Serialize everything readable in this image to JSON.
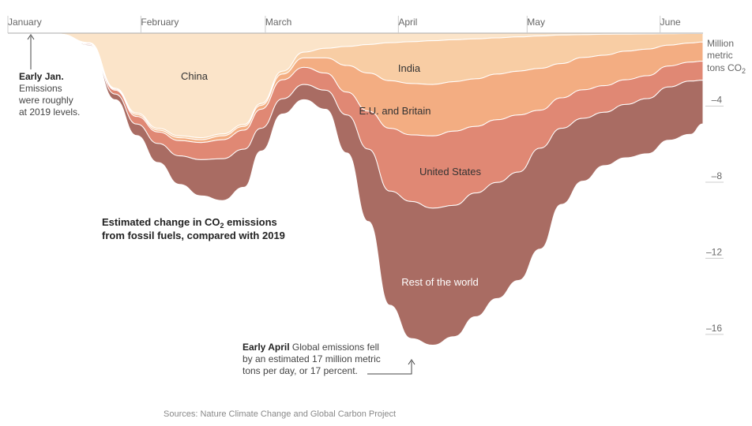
{
  "chart_data": {
    "type": "area",
    "title": "Estimated change in CO",
    "title_sub": "2",
    "title_mid": " emissions",
    "title_line2": "from fossil fuels, compared with 2019",
    "ylabel_lines": [
      "Million",
      "metric",
      "tons CO"
    ],
    "ylabel_sub": "2",
    "ylim": [
      -17,
      0
    ],
    "y_ticks": [
      -4,
      -8,
      -12,
      -16
    ],
    "y_tick_labels": [
      "–4",
      "–8",
      "–12",
      "–16"
    ],
    "x_axis": "date",
    "x_range": [
      "2020-01-01",
      "2020-06-11"
    ],
    "months": [
      {
        "label": "January",
        "date": "2020-01-01"
      },
      {
        "label": "February",
        "date": "2020-02-01"
      },
      {
        "label": "March",
        "date": "2020-03-01"
      },
      {
        "label": "April",
        "date": "2020-04-01"
      },
      {
        "label": "May",
        "date": "2020-05-01"
      },
      {
        "label": "June",
        "date": "2020-06-01"
      }
    ],
    "x": [
      "2020-01-01",
      "2020-01-13",
      "2020-01-20",
      "2020-01-26",
      "2020-01-31",
      "2020-02-05",
      "2020-02-10",
      "2020-02-15",
      "2020-02-20",
      "2020-02-25",
      "2020-02-29",
      "2020-03-05",
      "2020-03-10",
      "2020-03-15",
      "2020-03-20",
      "2020-03-25",
      "2020-03-30",
      "2020-04-04",
      "2020-04-09",
      "2020-04-14",
      "2020-04-19",
      "2020-04-24",
      "2020-04-29",
      "2020-05-04",
      "2020-05-09",
      "2020-05-14",
      "2020-05-19",
      "2020-05-24",
      "2020-05-29",
      "2020-06-03",
      "2020-06-08",
      "2020-06-11"
    ],
    "series": [
      {
        "name": "China",
        "color": "#fbe4c9",
        "values": [
          0,
          -0.05,
          -0.5,
          -2.9,
          -4.2,
          -5.0,
          -5.4,
          -5.5,
          -5.3,
          -4.8,
          -3.7,
          -2.0,
          -1.0,
          -0.8,
          -0.7,
          -0.6,
          -0.5,
          -0.45,
          -0.4,
          -0.35,
          -0.3,
          -0.25,
          -0.2,
          -0.15,
          -0.1,
          -0.08,
          -0.06,
          -0.05,
          -0.04,
          -0.03,
          -0.02,
          -0.02
        ]
      },
      {
        "name": "India",
        "color": "#f8cda4",
        "values": [
          0,
          0,
          -0.02,
          -0.05,
          -0.08,
          -0.1,
          -0.1,
          -0.1,
          -0.1,
          -0.1,
          -0.1,
          -0.15,
          -0.3,
          -0.5,
          -1.0,
          -1.5,
          -2.0,
          -2.2,
          -2.3,
          -2.2,
          -2.1,
          -1.9,
          -1.8,
          -1.7,
          -1.5,
          -1.2,
          -1.1,
          -0.9,
          -0.8,
          -0.6,
          -0.5,
          -0.45
        ]
      },
      {
        "name": "E.U. and Britain",
        "color": "#f3ad82",
        "values": [
          0,
          0,
          -0.03,
          -0.05,
          -0.1,
          -0.1,
          -0.15,
          -0.15,
          -0.2,
          -0.2,
          -0.2,
          -0.3,
          -0.5,
          -0.8,
          -1.4,
          -2.0,
          -2.5,
          -2.7,
          -2.7,
          -2.6,
          -2.5,
          -2.4,
          -2.3,
          -2.2,
          -1.8,
          -1.7,
          -1.6,
          -1.5,
          -1.4,
          -1.1,
          -1.0,
          -1.0
        ]
      },
      {
        "name": "United States",
        "color": "#e08874",
        "values": [
          0,
          0,
          -0.05,
          -0.2,
          -0.4,
          -0.6,
          -0.8,
          -0.9,
          -1.0,
          -1.0,
          -1.0,
          -1.0,
          -0.9,
          -0.9,
          -1.2,
          -2.0,
          -3.3,
          -3.5,
          -3.8,
          -3.9,
          -3.5,
          -3.3,
          -3.0,
          -2.0,
          -1.6,
          -1.5,
          -1.4,
          -1.3,
          -1.2,
          -1.1,
          -1.0,
          -1.0
        ]
      },
      {
        "name": "Rest of the world",
        "color": "#a96c63",
        "values": [
          0,
          0,
          -0.05,
          -0.3,
          -0.6,
          -1.0,
          -1.5,
          -1.9,
          -2.2,
          -2.0,
          -1.2,
          -0.8,
          -0.8,
          -1.0,
          -2.0,
          -3.8,
          -6.0,
          -7.2,
          -7.2,
          -6.9,
          -6.5,
          -6.1,
          -5.7,
          -5.3,
          -4.0,
          -3.3,
          -2.8,
          -2.8,
          -2.9,
          -2.8,
          -2.8,
          -2.3
        ]
      }
    ],
    "series_labels_light": [
      false,
      false,
      false,
      false,
      true
    ],
    "annotations": [
      {
        "bold": "Early Jan.",
        "lines": [
          "Emissions",
          "were roughly",
          "at 2019 levels."
        ]
      },
      {
        "bold": "Early April",
        "first_rest": " Global emissions fell",
        "lines": [
          "by an estimated 17 million metric",
          "tons per day, or 17 percent."
        ]
      }
    ],
    "source": "Sources: Nature Climate Change and Global Carbon Project",
    "grid": false,
    "legend": "inline labels"
  }
}
